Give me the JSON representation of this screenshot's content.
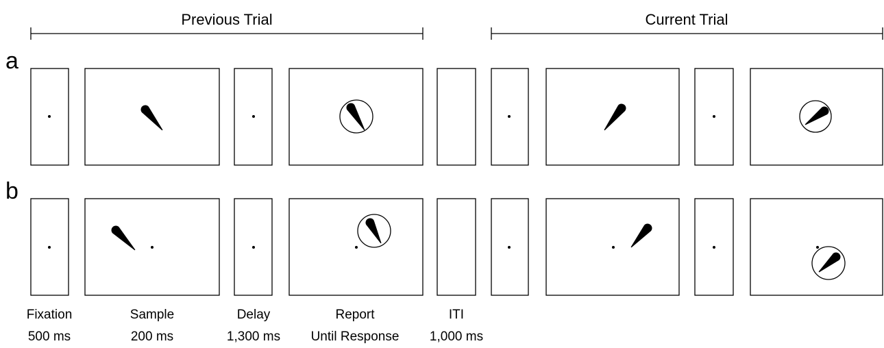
{
  "header": {
    "previous": "Previous Trial",
    "current": "Current Trial"
  },
  "rows": [
    "a",
    "b"
  ],
  "phases": [
    {
      "name": "Fixation",
      "duration": "500 ms"
    },
    {
      "name": "Sample",
      "duration": "200 ms"
    },
    {
      "name": "Delay",
      "duration": "1,300 ms"
    },
    {
      "name": "Report",
      "duration": "Until Response"
    },
    {
      "name": "ITI",
      "duration": "1,000 ms"
    }
  ]
}
